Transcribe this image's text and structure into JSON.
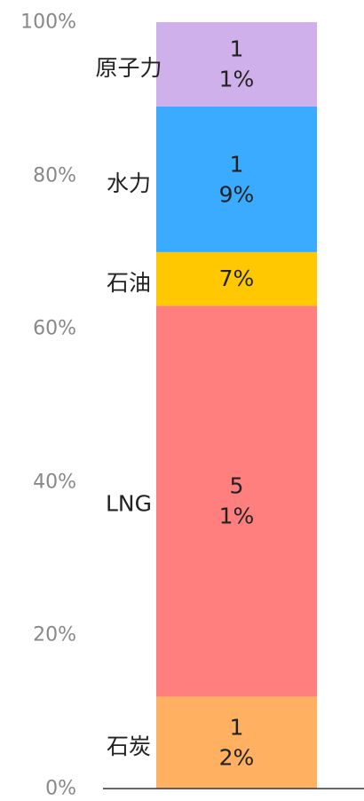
{
  "chart_data": {
    "type": "stacked-bar",
    "series": [
      {
        "name": "石炭",
        "color": "#ffb060",
        "values": [
          12
        ],
        "value_labels": [
          "12%"
        ]
      },
      {
        "name": "LNG",
        "color": "#ff7f7f",
        "values": [
          51
        ],
        "value_labels": [
          "51%"
        ]
      },
      {
        "name": "石油",
        "color": "#ffc800",
        "values": [
          7
        ],
        "value_labels": [
          "7%"
        ]
      },
      {
        "name": "水力",
        "color": "#3aabff",
        "values": [
          19
        ],
        "value_labels": [
          "19%"
        ]
      },
      {
        "name": "原子力",
        "color": "#d0b0ea",
        "values": [
          11
        ],
        "value_labels": [
          "11%"
        ]
      }
    ],
    "ylim": [
      0,
      100
    ],
    "yticks": [
      {
        "value": 0,
        "label": "0%"
      },
      {
        "value": 20,
        "label": "20%"
      },
      {
        "value": 40,
        "label": "40%"
      },
      {
        "value": 60,
        "label": "60%"
      },
      {
        "value": 80,
        "label": "80%"
      },
      {
        "value": 100,
        "label": "100%"
      }
    ],
    "grid": false
  }
}
